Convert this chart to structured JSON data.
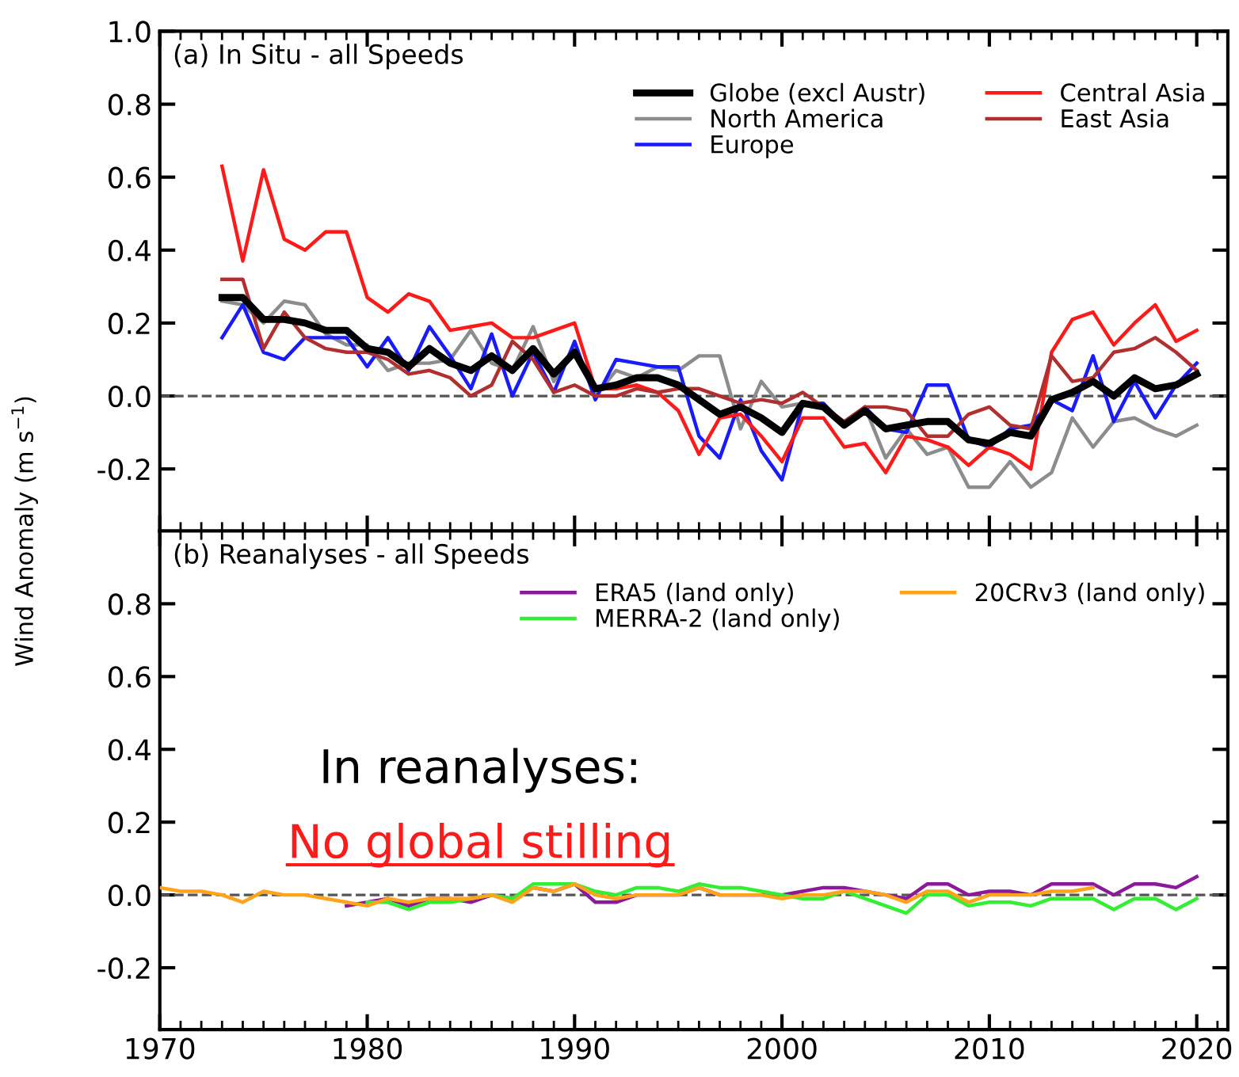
{
  "chart_data": [
    {
      "type": "line",
      "ylabel": "Wind Anomaly (m s$^{−1}$)",
      "annotations": [
        "(a) In Situ - all Speeds"
      ],
      "x": [
        1973,
        1974,
        1975,
        1976,
        1977,
        1978,
        1979,
        1980,
        1981,
        1982,
        1983,
        1984,
        1985,
        1986,
        1987,
        1988,
        1989,
        1990,
        1991,
        1992,
        1993,
        1994,
        1995,
        1996,
        1997,
        1998,
        1999,
        2000,
        2001,
        2002,
        2003,
        2004,
        2005,
        2006,
        2007,
        2008,
        2009,
        2010,
        2011,
        2012,
        2013,
        2014,
        2015,
        2016,
        2017,
        2018,
        2019,
        2020
      ],
      "series": [
        {
          "name": "Globe (excl Austr)",
          "color": "#000000",
          "values": [
            0.27,
            0.27,
            0.21,
            0.21,
            0.2,
            0.18,
            0.18,
            0.13,
            0.12,
            0.08,
            0.13,
            0.09,
            0.07,
            0.11,
            0.07,
            0.13,
            0.06,
            0.12,
            0.02,
            0.03,
            0.05,
            0.05,
            0.03,
            -0.01,
            -0.05,
            -0.03,
            -0.06,
            -0.1,
            -0.02,
            -0.03,
            -0.08,
            -0.04,
            -0.09,
            -0.08,
            -0.07,
            -0.07,
            -0.12,
            -0.13,
            -0.1,
            -0.11,
            -0.01,
            0.01,
            0.04,
            0.0,
            0.05,
            0.02,
            0.03,
            0.06
          ]
        },
        {
          "name": "North America",
          "color": "#8c8c8c",
          "values": [
            0.26,
            0.25,
            0.2,
            0.26,
            0.25,
            0.17,
            0.14,
            0.14,
            0.07,
            0.09,
            0.09,
            0.1,
            0.18,
            0.09,
            0.07,
            0.19,
            0.04,
            0.14,
            0.0,
            0.07,
            0.05,
            0.08,
            0.07,
            0.11,
            0.11,
            -0.09,
            0.04,
            -0.03,
            -0.02,
            -0.03,
            -0.08,
            -0.03,
            -0.17,
            -0.09,
            -0.16,
            -0.14,
            -0.25,
            -0.25,
            -0.18,
            -0.25,
            -0.21,
            -0.06,
            -0.14,
            -0.07,
            -0.06,
            -0.09,
            -0.11,
            -0.08
          ]
        },
        {
          "name": "Europe",
          "color": "#1a1aff",
          "values": [
            0.16,
            0.25,
            0.12,
            0.1,
            0.16,
            0.16,
            0.16,
            0.08,
            0.16,
            0.07,
            0.19,
            0.11,
            0.02,
            0.17,
            0.0,
            0.12,
            0.01,
            0.15,
            -0.01,
            0.1,
            0.09,
            0.08,
            0.08,
            -0.11,
            -0.17,
            -0.01,
            -0.15,
            -0.23,
            -0.02,
            -0.02,
            -0.08,
            -0.03,
            -0.09,
            -0.1,
            0.03,
            0.03,
            -0.12,
            -0.14,
            -0.09,
            -0.08,
            -0.01,
            -0.04,
            0.11,
            -0.07,
            0.04,
            -0.06,
            0.03,
            0.09
          ]
        },
        {
          "name": "Central Asia",
          "color": "#ff1a1a",
          "values": [
            0.63,
            0.37,
            0.62,
            0.43,
            0.4,
            0.45,
            0.45,
            0.27,
            0.23,
            0.28,
            0.26,
            0.18,
            0.19,
            0.2,
            0.16,
            0.16,
            0.18,
            0.2,
            0.02,
            0.02,
            0.03,
            0.01,
            -0.04,
            -0.16,
            -0.06,
            -0.05,
            -0.11,
            -0.18,
            -0.06,
            -0.06,
            -0.14,
            -0.13,
            -0.21,
            -0.11,
            -0.12,
            -0.14,
            -0.19,
            -0.14,
            -0.16,
            -0.2,
            0.12,
            0.21,
            0.23,
            0.14,
            0.2,
            0.25,
            0.15,
            0.18
          ]
        },
        {
          "name": "East Asia",
          "color": "#b03030",
          "values": [
            0.32,
            0.32,
            0.13,
            0.23,
            0.16,
            0.13,
            0.12,
            0.12,
            0.1,
            0.06,
            0.07,
            0.05,
            0.0,
            0.03,
            0.15,
            0.1,
            0.01,
            0.03,
            0.0,
            0.0,
            0.02,
            0.01,
            0.02,
            0.02,
            0.0,
            -0.02,
            -0.01,
            -0.02,
            0.01,
            -0.03,
            -0.07,
            -0.03,
            -0.03,
            -0.04,
            -0.11,
            -0.11,
            -0.05,
            -0.03,
            -0.08,
            -0.09,
            0.11,
            0.04,
            0.05,
            0.12,
            0.13,
            0.16,
            0.12,
            0.07
          ]
        }
      ],
      "xlim": [
        1970,
        2021.5
      ],
      "ylim": [
        -0.37,
        1.0
      ],
      "xticks": [
        1970,
        1980,
        1990,
        2000,
        2010,
        2020
      ],
      "yticks": [
        {
          "value": -0.2,
          "label": "-0.2"
        },
        {
          "value": 0,
          "label": "0.0"
        },
        0.2,
        0.4,
        0.6,
        0.8,
        {
          "value": 1,
          "label": "1.0"
        }
      ],
      "ref_lines": [
        {
          "axis": "y",
          "value": 0,
          "color": "#555555",
          "line_style": "dashed"
        }
      ],
      "tick_labels": "y",
      "legend": "top right",
      "grid": false,
      "line_style": "solid",
      "marker": "none"
    },
    {
      "type": "line",
      "annotations": [
        "(b) Reanalyses - all Speeds",
        "In reanalyses:",
        "No global stilling"
      ],
      "series": [
        {
          "name": "ERA5 (land only)",
          "color": "#8b1a9b",
          "x": [
            1979,
            1980,
            1981,
            1982,
            1983,
            1984,
            1985,
            1986,
            1987,
            1988,
            1989,
            1990,
            1991,
            1992,
            1993,
            1994,
            1995,
            1996,
            1997,
            1998,
            1999,
            2000,
            2001,
            2002,
            2003,
            2004,
            2005,
            2006,
            2007,
            2008,
            2009,
            2010,
            2011,
            2012,
            2013,
            2014,
            2015,
            2016,
            2017,
            2018,
            2019,
            2020
          ],
          "values": [
            -0.03,
            -0.02,
            -0.01,
            -0.03,
            -0.01,
            -0.01,
            -0.02,
            0.0,
            -0.01,
            0.02,
            0.01,
            0.03,
            -0.02,
            -0.02,
            0.0,
            0.0,
            0.0,
            0.02,
            0.0,
            0.0,
            0.0,
            0.0,
            0.01,
            0.02,
            0.02,
            0.01,
            0.0,
            -0.01,
            0.03,
            0.03,
            0.0,
            0.01,
            0.01,
            0.0,
            0.03,
            0.03,
            0.03,
            0.0,
            0.03,
            0.03,
            0.02,
            0.05
          ]
        },
        {
          "name": "MERRA-2 (land only)",
          "color": "#33ee33",
          "x": [
            1980,
            1981,
            1982,
            1983,
            1984,
            1985,
            1986,
            1987,
            1988,
            1989,
            1990,
            1991,
            1992,
            1993,
            1994,
            1995,
            1996,
            1997,
            1998,
            1999,
            2000,
            2001,
            2002,
            2003,
            2004,
            2005,
            2006,
            2007,
            2008,
            2009,
            2010,
            2011,
            2012,
            2013,
            2014,
            2015,
            2016,
            2017,
            2018,
            2019,
            2020
          ],
          "values": [
            -0.02,
            -0.02,
            -0.04,
            -0.02,
            -0.02,
            -0.01,
            0.0,
            -0.01,
            0.03,
            0.03,
            0.03,
            0.01,
            0.0,
            0.02,
            0.02,
            0.01,
            0.03,
            0.02,
            0.02,
            0.01,
            0.0,
            -0.01,
            -0.01,
            0.01,
            -0.01,
            -0.03,
            -0.05,
            0.0,
            0.0,
            -0.03,
            -0.02,
            -0.02,
            -0.03,
            -0.01,
            -0.01,
            -0.01,
            -0.04,
            -0.01,
            -0.01,
            -0.04,
            -0.01
          ]
        },
        {
          "name": "20CRv3 (land only)",
          "color": "#ffa31a",
          "x": [
            1970,
            1971,
            1972,
            1973,
            1974,
            1975,
            1976,
            1977,
            1978,
            1979,
            1980,
            1981,
            1982,
            1983,
            1984,
            1985,
            1986,
            1987,
            1988,
            1989,
            1990,
            1991,
            1992,
            1993,
            1994,
            1995,
            1996,
            1997,
            1998,
            1999,
            2000,
            2001,
            2002,
            2003,
            2004,
            2005,
            2006,
            2007,
            2008,
            2009,
            2010,
            2011,
            2012,
            2013,
            2014,
            2015
          ],
          "values": [
            0.02,
            0.01,
            0.01,
            0.0,
            -0.02,
            0.01,
            0.0,
            0.0,
            -0.01,
            -0.02,
            -0.03,
            -0.01,
            -0.02,
            -0.01,
            -0.01,
            -0.01,
            0.0,
            -0.02,
            0.02,
            0.01,
            0.03,
            0.0,
            -0.01,
            0.0,
            0.0,
            0.0,
            0.02,
            0.0,
            0.0,
            0.0,
            -0.01,
            0.0,
            0.0,
            0.01,
            0.01,
            0.0,
            -0.02,
            0.01,
            0.01,
            -0.02,
            0.0,
            0.0,
            0.0,
            0.01,
            0.01,
            0.02
          ]
        }
      ],
      "xlim": [
        1970,
        2021.5
      ],
      "ylim": [
        -0.37,
        1.0
      ],
      "xticks": [
        1970,
        1980,
        1990,
        2000,
        2010,
        2020
      ],
      "yticks": [
        {
          "value": -0.2,
          "label": "-0.2"
        },
        {
          "value": 0,
          "label": "0.0"
        },
        0.2,
        0.4,
        0.6,
        0.8
      ],
      "ref_lines": [
        {
          "axis": "y",
          "value": 0,
          "color": "#555555",
          "line_style": "dashed"
        }
      ],
      "legend": "top right",
      "grid": false,
      "line_style": "solid",
      "marker": "none"
    }
  ]
}
